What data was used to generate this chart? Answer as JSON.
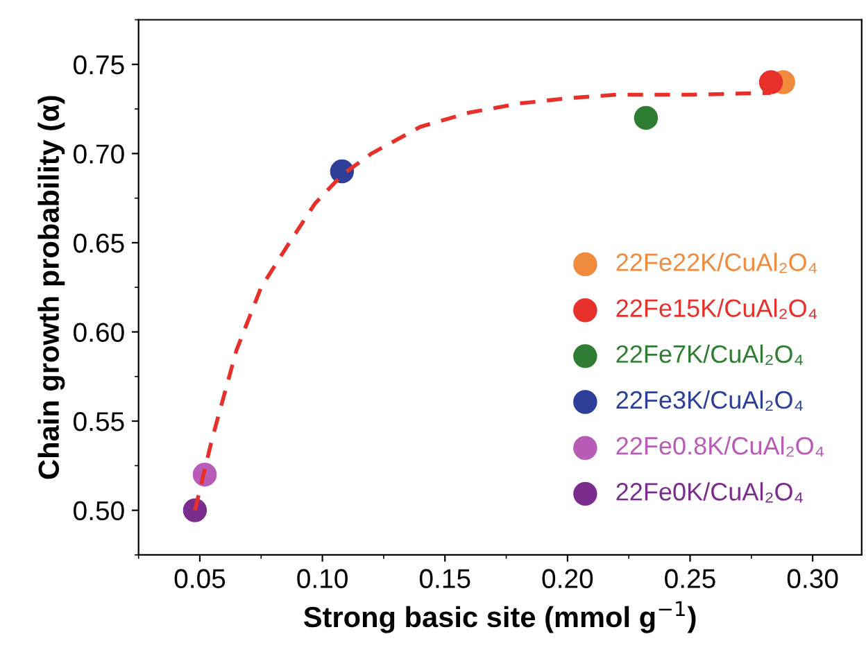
{
  "chart_data": {
    "type": "scatter",
    "xlabel": "Strong basic site (mmol g$^{−1}$)",
    "ylabel": "Chain growth probability (α)",
    "xlim": [
      0.025,
      0.32
    ],
    "xticks": [
      {
        "value": 0.05,
        "label": "0.05"
      },
      {
        "value": 0.1,
        "label": "0.10"
      },
      {
        "value": 0.15,
        "label": "0.15"
      },
      {
        "value": 0.2,
        "label": "0.20"
      },
      {
        "value": 0.25,
        "label": "0.25"
      },
      {
        "value": 0.3,
        "label": "0.30"
      }
    ],
    "ylim": [
      0.475,
      0.775
    ],
    "yticks": [
      {
        "value": 0.5,
        "label": "0.50"
      },
      {
        "value": 0.55,
        "label": "0.55"
      },
      {
        "value": 0.6,
        "label": "0.60"
      },
      {
        "value": 0.65,
        "label": "0.65"
      },
      {
        "value": 0.7,
        "label": "0.70"
      },
      {
        "value": 0.75,
        "label": "0.75"
      }
    ],
    "marker": "circle",
    "legend": "bottom right",
    "grid": false,
    "series": [
      {
        "type": "line",
        "marker": "none",
        "line_style": "dashed",
        "color": "#e8302a",
        "x": [
          0.048,
          0.055,
          0.065,
          0.075,
          0.087,
          0.097,
          0.108,
          0.12,
          0.14,
          0.16,
          0.18,
          0.2,
          0.22,
          0.25,
          0.283
        ],
        "values": [
          0.5,
          0.54,
          0.59,
          0.625,
          0.651,
          0.672,
          0.688,
          0.7,
          0.715,
          0.723,
          0.728,
          0.731,
          0.733,
          0.733,
          0.734
        ]
      },
      {
        "name": "22Fe22K/CuAl₂O₄",
        "color": "#f08a3c",
        "x": [
          0.288
        ],
        "values": [
          0.74
        ]
      },
      {
        "name": "22Fe15K/CuAl₂O₄",
        "color": "#e8302a",
        "x": [
          0.283
        ],
        "values": [
          0.74
        ]
      },
      {
        "name": "22Fe7K/CuAl₂O₄",
        "color": "#2e7d32",
        "x": [
          0.232
        ],
        "values": [
          0.72
        ]
      },
      {
        "name": "22Fe3K/CuAl₂O₄",
        "color": "#2e3f9a",
        "x": [
          0.108
        ],
        "values": [
          0.69
        ]
      },
      {
        "name": "22Fe0.8K/CuAl₂O₄",
        "color": "#b85cb8",
        "x": [
          0.052
        ],
        "values": [
          0.52
        ]
      },
      {
        "name": "22Fe0K/CuAl₂O₄",
        "color": "#7b2d8e",
        "x": [
          0.048
        ],
        "values": [
          0.5
        ]
      }
    ]
  }
}
